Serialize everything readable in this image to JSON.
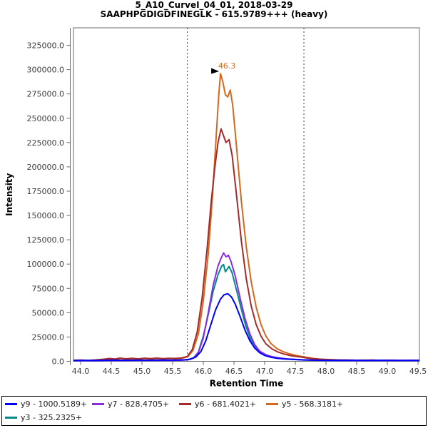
{
  "title": {
    "line1": "5_A10_CurveI_04_01, 2018-03-29",
    "line2": "SAAPHPGDIGDFINEGLK - 615.9789+++ (heavy)"
  },
  "chart_data": {
    "type": "line",
    "title": "5_A10_CurveI_04_01, 2018-03-29",
    "subtitle": "SAAPHPGDIGDFINEGLK - 615.9789+++ (heavy)",
    "xlabel": "Retention Time",
    "ylabel": "Intensity",
    "xlim": [
      43.884,
      49.523
    ],
    "ylim": [
      0,
      343000
    ],
    "xticks": [
      44.0,
      44.5,
      45.0,
      45.5,
      46.0,
      46.5,
      47.0,
      47.5,
      48.0,
      48.5,
      49.0,
      49.5
    ],
    "yticks": [
      0,
      25000,
      50000,
      75000,
      100000,
      125000,
      150000,
      175000,
      200000,
      225000,
      250000,
      275000,
      300000,
      325000
    ],
    "grid": false,
    "legend_position": "bottom",
    "peak_boundaries": [
      45.74,
      47.64
    ],
    "annotation": {
      "text": "46.3",
      "rt": 46.28,
      "intensity": 296000,
      "color": "#D2691E"
    },
    "axis_color": "#6a6a6a",
    "tick_label_color": "#3d3d3d",
    "boundary_color": "#3c3c3c",
    "draw_order": [
      3,
      2,
      4,
      1,
      0
    ],
    "series": [
      {
        "id": "y9",
        "label": "y9 - 1000.5189+",
        "color": "#0000FF",
        "points": [
          [
            43.89,
            800
          ],
          [
            44.1,
            900
          ],
          [
            44.3,
            800
          ],
          [
            44.5,
            1200
          ],
          [
            44.7,
            1000
          ],
          [
            44.9,
            1200
          ],
          [
            45.1,
            1100
          ],
          [
            45.3,
            1300
          ],
          [
            45.5,
            1200
          ],
          [
            45.66,
            1400
          ],
          [
            45.78,
            2000
          ],
          [
            45.88,
            4500
          ],
          [
            45.96,
            10000
          ],
          [
            46.04,
            21000
          ],
          [
            46.12,
            37000
          ],
          [
            46.2,
            53000
          ],
          [
            46.28,
            64000
          ],
          [
            46.34,
            68500
          ],
          [
            46.4,
            69500
          ],
          [
            46.46,
            66000
          ],
          [
            46.52,
            59000
          ],
          [
            46.6,
            46000
          ],
          [
            46.68,
            32000
          ],
          [
            46.76,
            21000
          ],
          [
            46.84,
            13500
          ],
          [
            46.92,
            8800
          ],
          [
            47.0,
            6000
          ],
          [
            47.1,
            4200
          ],
          [
            47.2,
            3100
          ],
          [
            47.32,
            2400
          ],
          [
            47.46,
            1900
          ],
          [
            47.6,
            1500
          ],
          [
            47.78,
            1200
          ],
          [
            47.95,
            1000
          ],
          [
            48.15,
            900
          ],
          [
            48.4,
            1000
          ],
          [
            48.65,
            800
          ],
          [
            48.9,
            1000
          ],
          [
            49.15,
            800
          ],
          [
            49.4,
            900
          ],
          [
            49.52,
            800
          ]
        ]
      },
      {
        "id": "y7",
        "label": "y7 - 828.4705+",
        "color": "#8A2BE2",
        "points": [
          [
            43.89,
            500
          ],
          [
            44.1,
            700
          ],
          [
            44.3,
            500
          ],
          [
            44.5,
            900
          ],
          [
            44.7,
            700
          ],
          [
            44.9,
            900
          ],
          [
            45.1,
            800
          ],
          [
            45.3,
            1000
          ],
          [
            45.5,
            900
          ],
          [
            45.62,
            1100
          ],
          [
            45.74,
            1500
          ],
          [
            45.84,
            3200
          ],
          [
            45.92,
            9000
          ],
          [
            46.0,
            24000
          ],
          [
            46.08,
            50000
          ],
          [
            46.16,
            78000
          ],
          [
            46.24,
            98000
          ],
          [
            46.29,
            106000
          ],
          [
            46.33,
            111500
          ],
          [
            46.37,
            107500
          ],
          [
            46.41,
            109000
          ],
          [
            46.45,
            103000
          ],
          [
            46.52,
            88000
          ],
          [
            46.6,
            65000
          ],
          [
            46.68,
            44000
          ],
          [
            46.76,
            28000
          ],
          [
            46.84,
            17000
          ],
          [
            46.92,
            10500
          ],
          [
            47.02,
            6800
          ],
          [
            47.12,
            4700
          ],
          [
            47.24,
            3400
          ],
          [
            47.36,
            2500
          ],
          [
            47.5,
            1900
          ],
          [
            47.64,
            1500
          ],
          [
            47.82,
            1200
          ],
          [
            48.0,
            1000
          ],
          [
            48.25,
            900
          ],
          [
            48.5,
            800
          ],
          [
            48.8,
            900
          ],
          [
            49.1,
            800
          ],
          [
            49.35,
            900
          ],
          [
            49.52,
            800
          ]
        ]
      },
      {
        "id": "y6",
        "label": "y6 - 681.4021+",
        "color": "#A52A2A",
        "points": [
          [
            43.89,
            1100
          ],
          [
            44.0,
            1300
          ],
          [
            44.12,
            900
          ],
          [
            44.25,
            1500
          ],
          [
            44.38,
            2200
          ],
          [
            44.48,
            2900
          ],
          [
            44.56,
            2300
          ],
          [
            44.64,
            3300
          ],
          [
            44.74,
            2600
          ],
          [
            44.84,
            3100
          ],
          [
            44.94,
            2500
          ],
          [
            45.04,
            3200
          ],
          [
            45.14,
            2700
          ],
          [
            45.24,
            3300
          ],
          [
            45.34,
            2800
          ],
          [
            45.44,
            3100
          ],
          [
            45.54,
            2900
          ],
          [
            45.64,
            3400
          ],
          [
            45.74,
            5000
          ],
          [
            45.82,
            12000
          ],
          [
            45.9,
            30000
          ],
          [
            45.98,
            65000
          ],
          [
            46.06,
            115000
          ],
          [
            46.13,
            165000
          ],
          [
            46.19,
            200000
          ],
          [
            46.24,
            225000
          ],
          [
            46.29,
            239000
          ],
          [
            46.33,
            232000
          ],
          [
            46.37,
            225000
          ],
          [
            46.42,
            228000
          ],
          [
            46.47,
            212000
          ],
          [
            46.54,
            172000
          ],
          [
            46.62,
            124000
          ],
          [
            46.7,
            85000
          ],
          [
            46.78,
            57000
          ],
          [
            46.86,
            38000
          ],
          [
            46.94,
            26000
          ],
          [
            47.02,
            18000
          ],
          [
            47.12,
            12800
          ],
          [
            47.22,
            9500
          ],
          [
            47.32,
            7400
          ],
          [
            47.42,
            5900
          ],
          [
            47.52,
            4900
          ],
          [
            47.6,
            4300
          ],
          [
            47.68,
            3500
          ],
          [
            47.78,
            2700
          ],
          [
            47.9,
            2100
          ],
          [
            48.05,
            1700
          ],
          [
            48.2,
            1400
          ],
          [
            48.4,
            1200
          ],
          [
            48.6,
            1000
          ],
          [
            48.75,
            1300
          ],
          [
            48.9,
            1000
          ],
          [
            49.1,
            1200
          ],
          [
            49.25,
            900
          ],
          [
            49.4,
            1100
          ],
          [
            49.52,
            1000
          ]
        ]
      },
      {
        "id": "y5",
        "label": "y5 - 568.3181+",
        "color": "#D2691E",
        "points": [
          [
            43.89,
            800
          ],
          [
            44.0,
            1000
          ],
          [
            44.1,
            700
          ],
          [
            44.2,
            1200
          ],
          [
            44.3,
            900
          ],
          [
            44.42,
            1500
          ],
          [
            44.5,
            2600
          ],
          [
            44.58,
            2000
          ],
          [
            44.66,
            2900
          ],
          [
            44.75,
            2200
          ],
          [
            44.85,
            2800
          ],
          [
            44.95,
            2200
          ],
          [
            45.05,
            2900
          ],
          [
            45.15,
            2400
          ],
          [
            45.25,
            3000
          ],
          [
            45.35,
            2500
          ],
          [
            45.45,
            2900
          ],
          [
            45.55,
            2600
          ],
          [
            45.65,
            3100
          ],
          [
            45.75,
            4800
          ],
          [
            45.83,
            11000
          ],
          [
            45.92,
            28000
          ],
          [
            46.0,
            62000
          ],
          [
            46.08,
            110000
          ],
          [
            46.15,
            170000
          ],
          [
            46.21,
            232000
          ],
          [
            46.25,
            272000
          ],
          [
            46.28,
            296000
          ],
          [
            46.32,
            287000
          ],
          [
            46.36,
            274000
          ],
          [
            46.4,
            272000
          ],
          [
            46.44,
            279000
          ],
          [
            46.48,
            263000
          ],
          [
            46.54,
            222000
          ],
          [
            46.62,
            165000
          ],
          [
            46.7,
            118000
          ],
          [
            46.78,
            82000
          ],
          [
            46.86,
            56000
          ],
          [
            46.94,
            38000
          ],
          [
            47.02,
            26000
          ],
          [
            47.1,
            18500
          ],
          [
            47.2,
            13000
          ],
          [
            47.3,
            10000
          ],
          [
            47.4,
            7800
          ],
          [
            47.5,
            6200
          ],
          [
            47.58,
            5300
          ],
          [
            47.64,
            4600
          ],
          [
            47.72,
            3700
          ],
          [
            47.82,
            2800
          ],
          [
            47.92,
            2200
          ],
          [
            48.05,
            1800
          ],
          [
            48.2,
            1500
          ],
          [
            48.35,
            1300
          ],
          [
            48.5,
            1100
          ],
          [
            48.65,
            1300
          ],
          [
            48.8,
            1000
          ],
          [
            49.0,
            1200
          ],
          [
            49.15,
            900
          ],
          [
            49.3,
            1100
          ],
          [
            49.42,
            900
          ],
          [
            49.52,
            1000
          ]
        ]
      },
      {
        "id": "y3",
        "label": "y3 - 325.2325+",
        "color": "#008B8B",
        "points": [
          [
            43.89,
            600
          ],
          [
            44.1,
            800
          ],
          [
            44.3,
            600
          ],
          [
            44.5,
            1000
          ],
          [
            44.7,
            800
          ],
          [
            44.9,
            1000
          ],
          [
            45.1,
            900
          ],
          [
            45.3,
            1100
          ],
          [
            45.5,
            1000
          ],
          [
            45.62,
            1200
          ],
          [
            45.74,
            1600
          ],
          [
            45.84,
            3500
          ],
          [
            45.92,
            9500
          ],
          [
            46.0,
            26000
          ],
          [
            46.08,
            48000
          ],
          [
            46.16,
            72000
          ],
          [
            46.24,
            89000
          ],
          [
            46.3,
            98000
          ],
          [
            46.33,
            99500
          ],
          [
            46.36,
            92000
          ],
          [
            46.42,
            97500
          ],
          [
            46.47,
            91000
          ],
          [
            46.53,
            76000
          ],
          [
            46.61,
            56000
          ],
          [
            46.69,
            37000
          ],
          [
            46.77,
            23000
          ],
          [
            46.85,
            14500
          ],
          [
            46.93,
            9500
          ],
          [
            47.03,
            6400
          ],
          [
            47.13,
            4600
          ],
          [
            47.25,
            3300
          ],
          [
            47.38,
            2400
          ],
          [
            47.52,
            1800
          ],
          [
            47.66,
            1400
          ],
          [
            47.85,
            1100
          ],
          [
            48.05,
            900
          ],
          [
            48.3,
            800
          ],
          [
            48.55,
            900
          ],
          [
            48.8,
            700
          ],
          [
            49.1,
            900
          ],
          [
            49.35,
            700
          ],
          [
            49.52,
            800
          ]
        ]
      }
    ]
  }
}
